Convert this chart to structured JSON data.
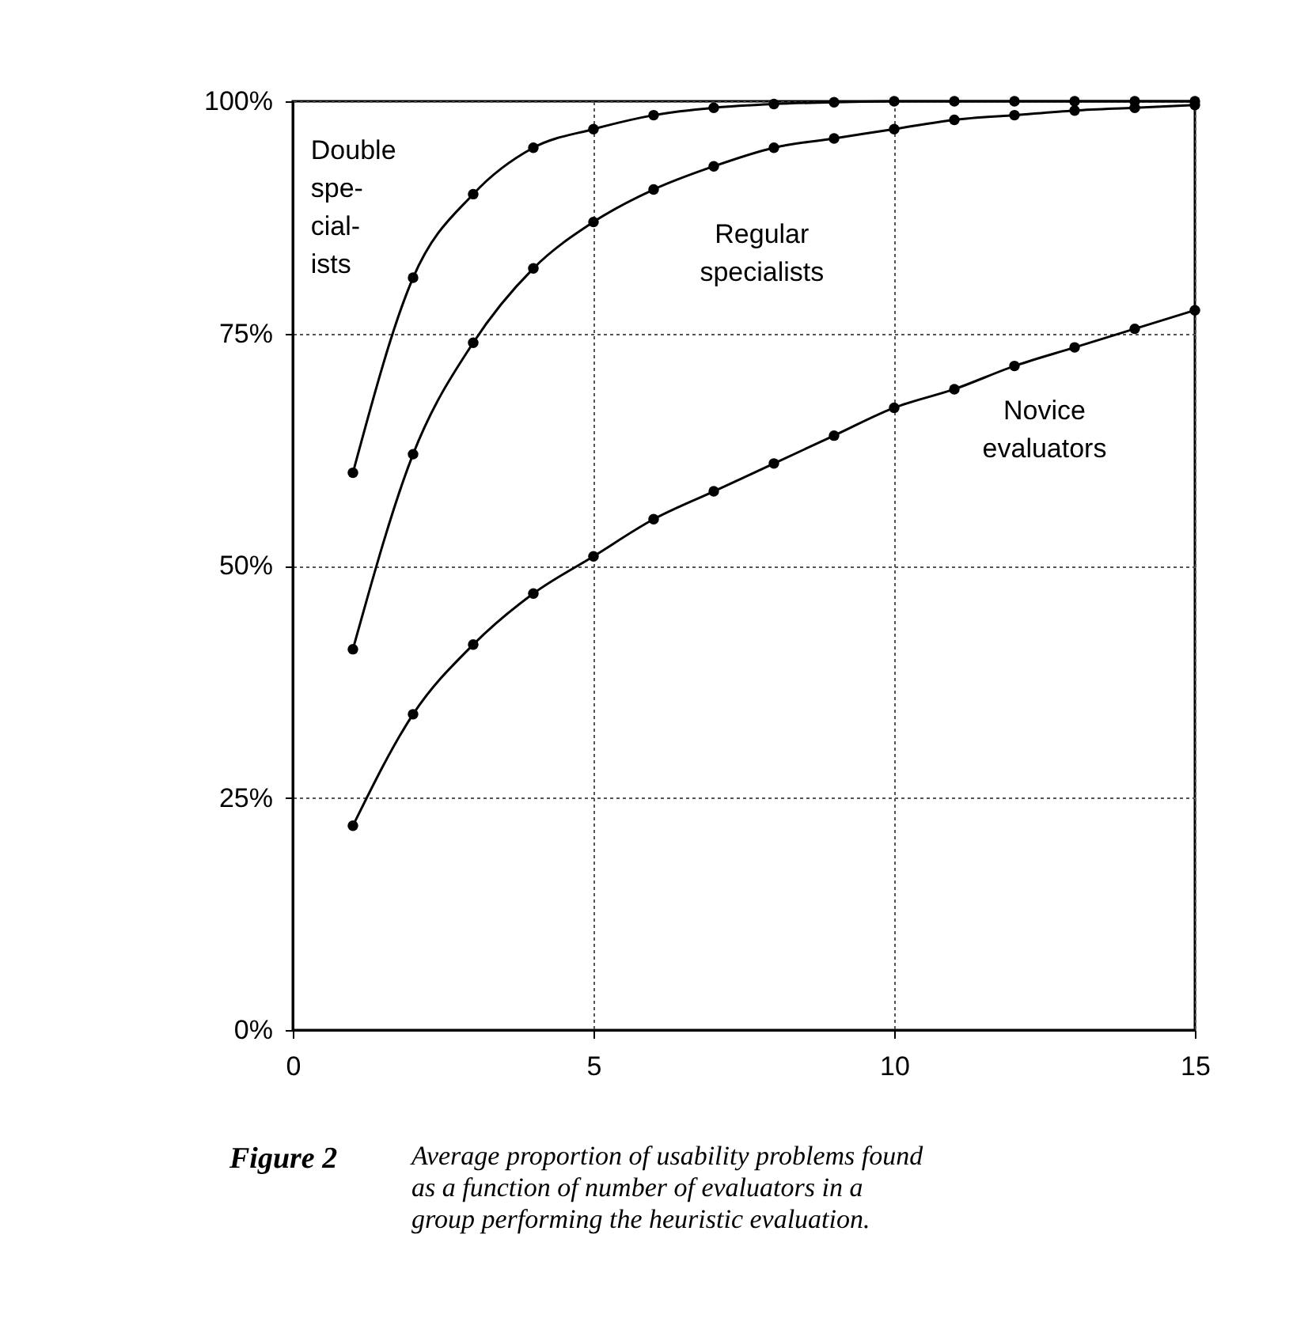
{
  "chart_data": {
    "type": "line",
    "x": [
      1,
      2,
      3,
      4,
      5,
      6,
      7,
      8,
      9,
      10,
      11,
      12,
      13,
      14,
      15
    ],
    "series": [
      {
        "name": "Double\nspe-\ncial-\nists",
        "color": "#000000",
        "values": [
          60,
          81,
          90,
          95,
          97,
          98.5,
          99.3,
          99.7,
          99.9,
          100,
          100,
          100,
          100,
          100,
          100
        ]
      },
      {
        "name": "Regular\nspecialists",
        "color": "#000000",
        "values": [
          41,
          62,
          74,
          82,
          87,
          90.5,
          93,
          95,
          96,
          97,
          98,
          98.5,
          99,
          99.3,
          99.6
        ]
      },
      {
        "name": "Novice\nevaluators",
        "color": "#000000",
        "values": [
          22,
          34,
          41.5,
          47,
          51,
          55,
          58,
          61,
          64,
          67,
          69,
          71.5,
          73.5,
          75.5,
          77.5
        ]
      }
    ],
    "xlim": [
      0,
      15
    ],
    "xticks": [
      0,
      5,
      10,
      15
    ],
    "ylim": [
      0,
      100
    ],
    "yticks": [
      {
        "value": 0,
        "label": "0%"
      },
      {
        "value": 25,
        "label": "25%"
      },
      {
        "value": 50,
        "label": "50%"
      },
      {
        "value": 75,
        "label": "75%"
      },
      {
        "value": 100,
        "label": "100%"
      }
    ],
    "grid": true,
    "marker": "circle",
    "line_style": "solid",
    "annotations": [
      "Figure 2",
      "Average proportion of usability problems found\nas a function of number of evaluators in a\ngroup performing the heuristic evaluation."
    ]
  }
}
